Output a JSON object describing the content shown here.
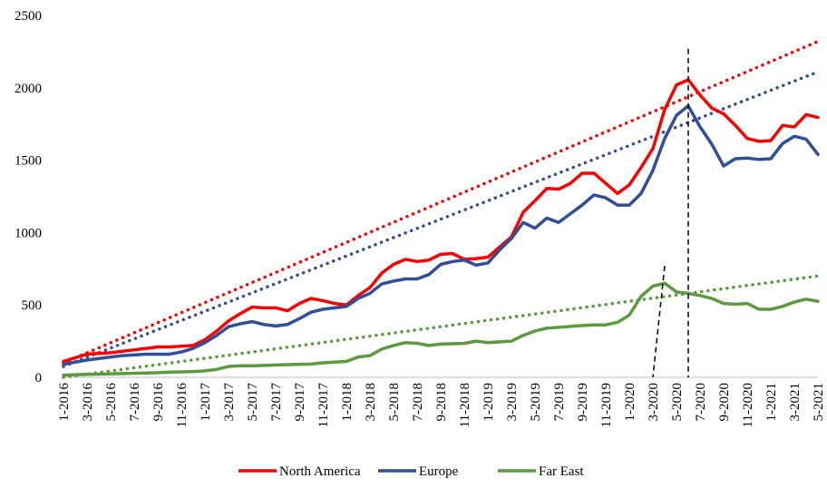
{
  "chart_data": {
    "type": "line",
    "title": "",
    "xlabel": "",
    "ylabel": "",
    "ylim": [
      0,
      2500
    ],
    "yticks": [
      0,
      500,
      1000,
      1500,
      2000,
      2500
    ],
    "grid": false,
    "legend_position": "bottom",
    "x": [
      "1-2016",
      "2-2016",
      "3-2016",
      "4-2016",
      "5-2016",
      "6-2016",
      "7-2016",
      "8-2016",
      "9-2016",
      "10-2016",
      "11-2016",
      "12-2016",
      "1-2017",
      "2-2017",
      "3-2017",
      "4-2017",
      "5-2017",
      "6-2017",
      "7-2017",
      "8-2017",
      "9-2017",
      "10-2017",
      "11-2017",
      "12-2017",
      "1-2018",
      "2-2018",
      "3-2018",
      "4-2018",
      "5-2018",
      "6-2018",
      "7-2018",
      "8-2018",
      "9-2018",
      "10-2018",
      "11-2018",
      "12-2018",
      "1-2019",
      "2-2019",
      "3-2019",
      "4-2019",
      "5-2019",
      "6-2019",
      "7-2019",
      "8-2019",
      "9-2019",
      "10-2019",
      "11-2019",
      "12-2019",
      "1-2020",
      "2-2020",
      "3-2020",
      "4-2020",
      "5-2020",
      "6-2020",
      "7-2020",
      "8-2020",
      "9-2020",
      "10-2020",
      "11-2020",
      "12-2020",
      "1-2021",
      "2-2021",
      "3-2021",
      "4-2021",
      "5-2021"
    ],
    "xtick_labels": [
      "1-2016",
      "3-2016",
      "5-2016",
      "7-2016",
      "9-2016",
      "11-2016",
      "1-2017",
      "3-2017",
      "5-2017",
      "7-2017",
      "9-2017",
      "11-2017",
      "1-2018",
      "3-2018",
      "5-2018",
      "7-2018",
      "9-2018",
      "11-2018",
      "1-2019",
      "3-2019",
      "5-2019",
      "7-2019",
      "9-2019",
      "11-2019",
      "1-2020",
      "3-2020",
      "5-2020",
      "7-2020",
      "9-2020",
      "11-2020",
      "1-2021",
      "3-2021",
      "5-2021"
    ],
    "series": [
      {
        "name": "North America",
        "color": "#ff0000",
        "values": [
          110,
          135,
          160,
          165,
          170,
          180,
          190,
          200,
          210,
          210,
          215,
          220,
          260,
          320,
          390,
          440,
          485,
          480,
          480,
          460,
          510,
          545,
          530,
          510,
          500,
          565,
          620,
          720,
          780,
          815,
          800,
          810,
          850,
          855,
          815,
          820,
          830,
          900,
          970,
          1140,
          1220,
          1305,
          1300,
          1340,
          1410,
          1410,
          1340,
          1270,
          1330,
          1450,
          1580,
          1850,
          2020,
          2055,
          1950,
          1860,
          1820,
          1740,
          1650,
          1630,
          1635,
          1740,
          1730,
          1815,
          1795
        ]
      },
      {
        "name": "Europe",
        "color": "#2f4f9a",
        "values": [
          90,
          105,
          120,
          130,
          140,
          150,
          155,
          160,
          160,
          160,
          175,
          200,
          240,
          290,
          350,
          370,
          385,
          365,
          355,
          365,
          405,
          450,
          470,
          480,
          490,
          545,
          580,
          645,
          665,
          680,
          680,
          710,
          780,
          800,
          810,
          775,
          790,
          880,
          960,
          1070,
          1030,
          1100,
          1070,
          1130,
          1190,
          1260,
          1240,
          1190,
          1190,
          1270,
          1430,
          1650,
          1810,
          1875,
          1730,
          1610,
          1460,
          1510,
          1515,
          1505,
          1510,
          1615,
          1665,
          1645,
          1540
        ]
      },
      {
        "name": "Far East",
        "color": "#5b9b3e",
        "values": [
          15,
          18,
          20,
          22,
          24,
          26,
          28,
          30,
          32,
          36,
          38,
          40,
          45,
          55,
          75,
          80,
          80,
          82,
          85,
          88,
          90,
          92,
          100,
          105,
          110,
          140,
          150,
          195,
          220,
          240,
          235,
          220,
          230,
          232,
          235,
          250,
          240,
          245,
          250,
          290,
          320,
          340,
          345,
          352,
          358,
          362,
          362,
          380,
          430,
          560,
          630,
          650,
          590,
          580,
          565,
          545,
          510,
          505,
          510,
          470,
          470,
          490,
          520,
          540,
          525
        ]
      }
    ],
    "trendlines": [
      {
        "series": "North America",
        "style": "dotted",
        "start": 100,
        "end": 2320
      },
      {
        "series": "Europe",
        "style": "dotted",
        "start": 75,
        "end": 2110
      },
      {
        "series": "Far East",
        "style": "dotted",
        "start": 0,
        "end": 700
      }
    ],
    "reference_lines": [
      {
        "style": "dashed",
        "from": {
          "x": "4-2020",
          "y": 770
        },
        "to": {
          "x": "3-2020",
          "y": 0
        }
      },
      {
        "style": "dashed",
        "from": {
          "x": "6-2020",
          "y": 2270
        },
        "to": {
          "x": "6-2020",
          "y": 0
        }
      }
    ]
  }
}
